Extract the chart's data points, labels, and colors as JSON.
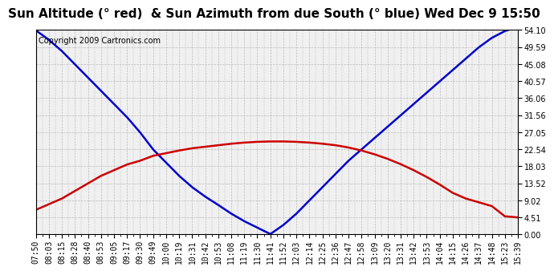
{
  "title": "Sun Altitude (° red)  & Sun Azimuth from due South (° blue) Wed Dec 9 15:50",
  "copyright": "Copyright 2009 Cartronics.com",
  "yticks": [
    0.0,
    4.51,
    9.02,
    13.52,
    18.03,
    22.54,
    27.05,
    31.56,
    36.06,
    40.57,
    45.08,
    49.59,
    54.1
  ],
  "ylim": [
    0.0,
    54.1
  ],
  "xtick_labels": [
    "07:50",
    "08:03",
    "08:15",
    "08:28",
    "08:40",
    "08:53",
    "09:05",
    "09:17",
    "09:30",
    "09:49",
    "10:00",
    "10:19",
    "10:31",
    "10:42",
    "10:53",
    "11:08",
    "11:19",
    "11:30",
    "11:41",
    "11:52",
    "12:03",
    "12:14",
    "12:25",
    "12:36",
    "12:47",
    "12:58",
    "13:09",
    "13:20",
    "13:31",
    "13:42",
    "13:53",
    "14:04",
    "14:15",
    "14:26",
    "14:37",
    "14:48",
    "15:23",
    "15:39"
  ],
  "blue_y": [
    54.0,
    51.5,
    48.5,
    45.0,
    41.5,
    38.0,
    34.5,
    31.0,
    27.0,
    22.5,
    19.0,
    15.5,
    12.5,
    10.0,
    7.8,
    5.5,
    3.5,
    1.8,
    0.1,
    2.5,
    5.5,
    9.0,
    12.5,
    16.0,
    19.5,
    22.5,
    25.5,
    28.5,
    31.5,
    34.5,
    37.5,
    40.5,
    43.5,
    46.5,
    49.5,
    52.0,
    53.8,
    55.0
  ],
  "red_y": [
    6.5,
    8.0,
    9.5,
    11.5,
    13.5,
    15.5,
    17.0,
    18.5,
    19.5,
    20.8,
    21.5,
    22.2,
    22.8,
    23.2,
    23.6,
    24.0,
    24.3,
    24.5,
    24.6,
    24.6,
    24.5,
    24.3,
    24.0,
    23.6,
    23.0,
    22.2,
    21.2,
    20.0,
    18.6,
    17.0,
    15.2,
    13.2,
    11.0,
    9.5,
    8.5,
    7.5,
    4.8,
    4.5
  ],
  "blue_color": "#0000cc",
  "red_color": "#cc0000",
  "grid_color": "#bbbbbb",
  "bg_color": "#ffffff",
  "plot_bg_color": "#f0f0f0",
  "title_fontsize": 11,
  "copyright_fontsize": 7,
  "tick_fontsize": 7,
  "line_width": 1.8
}
